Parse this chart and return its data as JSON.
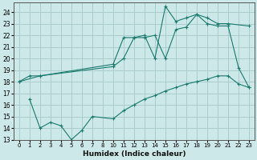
{
  "xlabel": "Humidex (Indice chaleur)",
  "bg_color": "#cce8e8",
  "grid_color": "#aacccc",
  "line_color": "#1a7a6e",
  "xlim": [
    -0.5,
    22.5
  ],
  "ylim": [
    13,
    24.8
  ],
  "yticks": [
    13,
    14,
    15,
    16,
    17,
    18,
    19,
    20,
    21,
    22,
    23,
    24
  ],
  "xtick_labels": [
    "0",
    "1",
    "2",
    "3",
    "4",
    "5",
    "6",
    "7",
    "8",
    "10",
    "11",
    "12",
    "13",
    "14",
    "15",
    "16",
    "17",
    "18",
    "19",
    "20",
    "21",
    "22",
    "23"
  ],
  "line1_x": [
    0,
    1,
    2,
    9,
    10,
    11,
    12,
    13,
    14,
    15,
    16,
    17,
    18,
    19,
    20,
    21,
    22
  ],
  "line1_y": [
    18.0,
    18.5,
    18.5,
    19.5,
    21.8,
    21.8,
    22.0,
    20.0,
    24.5,
    23.2,
    23.5,
    23.8,
    23.0,
    22.8,
    22.8,
    19.2,
    17.5
  ],
  "line2_x": [
    0,
    2,
    9,
    10,
    11,
    12,
    13,
    14,
    15,
    16,
    17,
    18,
    19,
    20,
    22
  ],
  "line2_y": [
    18.0,
    18.5,
    19.3,
    20.0,
    21.8,
    21.8,
    22.0,
    20.0,
    22.5,
    22.7,
    23.8,
    23.5,
    23.0,
    23.0,
    22.8
  ],
  "line3_x": [
    1,
    2,
    3,
    4,
    5,
    6,
    7,
    9,
    10,
    11,
    12,
    13,
    14,
    15,
    16,
    17,
    18,
    19,
    20,
    21,
    22
  ],
  "line3_y": [
    16.5,
    14.0,
    14.5,
    14.2,
    13.0,
    13.8,
    15.0,
    14.8,
    15.5,
    16.0,
    16.5,
    16.8,
    17.2,
    17.5,
    17.8,
    18.0,
    18.2,
    18.5,
    18.5,
    17.8,
    17.5
  ]
}
